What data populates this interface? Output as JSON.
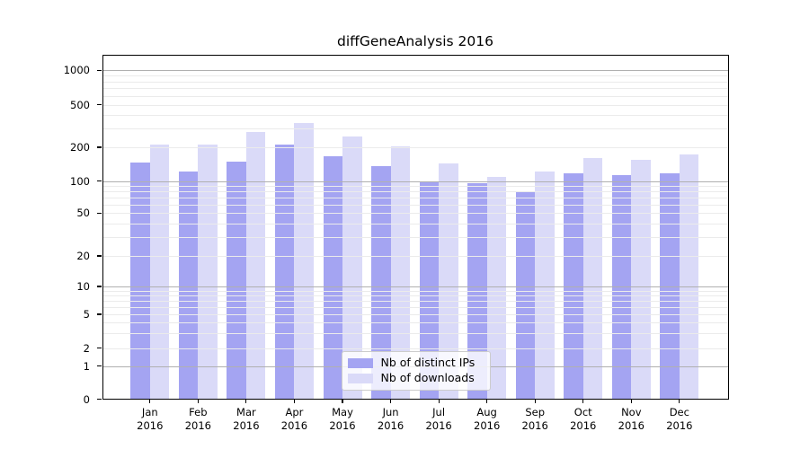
{
  "chart_data": {
    "type": "bar",
    "title": "diffGeneAnalysis 2016",
    "categories": [
      "Jan",
      "Feb",
      "Mar",
      "Apr",
      "May",
      "Jun",
      "Jul",
      "Aug",
      "Sep",
      "Oct",
      "Nov",
      "Dec"
    ],
    "year": "2016",
    "series": [
      {
        "name": "Nb of distinct IPs",
        "color": "#a4a4f2",
        "values": [
          146,
          122,
          149,
          211,
          166,
          136,
          98,
          95,
          79,
          117,
          114,
          118
        ]
      },
      {
        "name": "Nb of downloads",
        "color": "#dadaf8",
        "values": [
          212,
          210,
          278,
          340,
          251,
          203,
          143,
          110,
          122,
          160,
          154,
          174
        ]
      }
    ],
    "yticks": [
      0,
      1,
      2,
      5,
      10,
      20,
      50,
      100,
      200,
      500,
      1000
    ],
    "ylim": [
      0,
      1400
    ],
    "xlabel": "",
    "ylabel": "",
    "scale": "log-like (0,1,2,5 sequence)",
    "grid": true,
    "legend_position": "lower center",
    "colors": {
      "major_grid": "#b0b0b0",
      "minor_grid": "#ebebeb",
      "axis": "#000000",
      "background": "#ffffff",
      "legend_border": "#cccccc"
    }
  }
}
